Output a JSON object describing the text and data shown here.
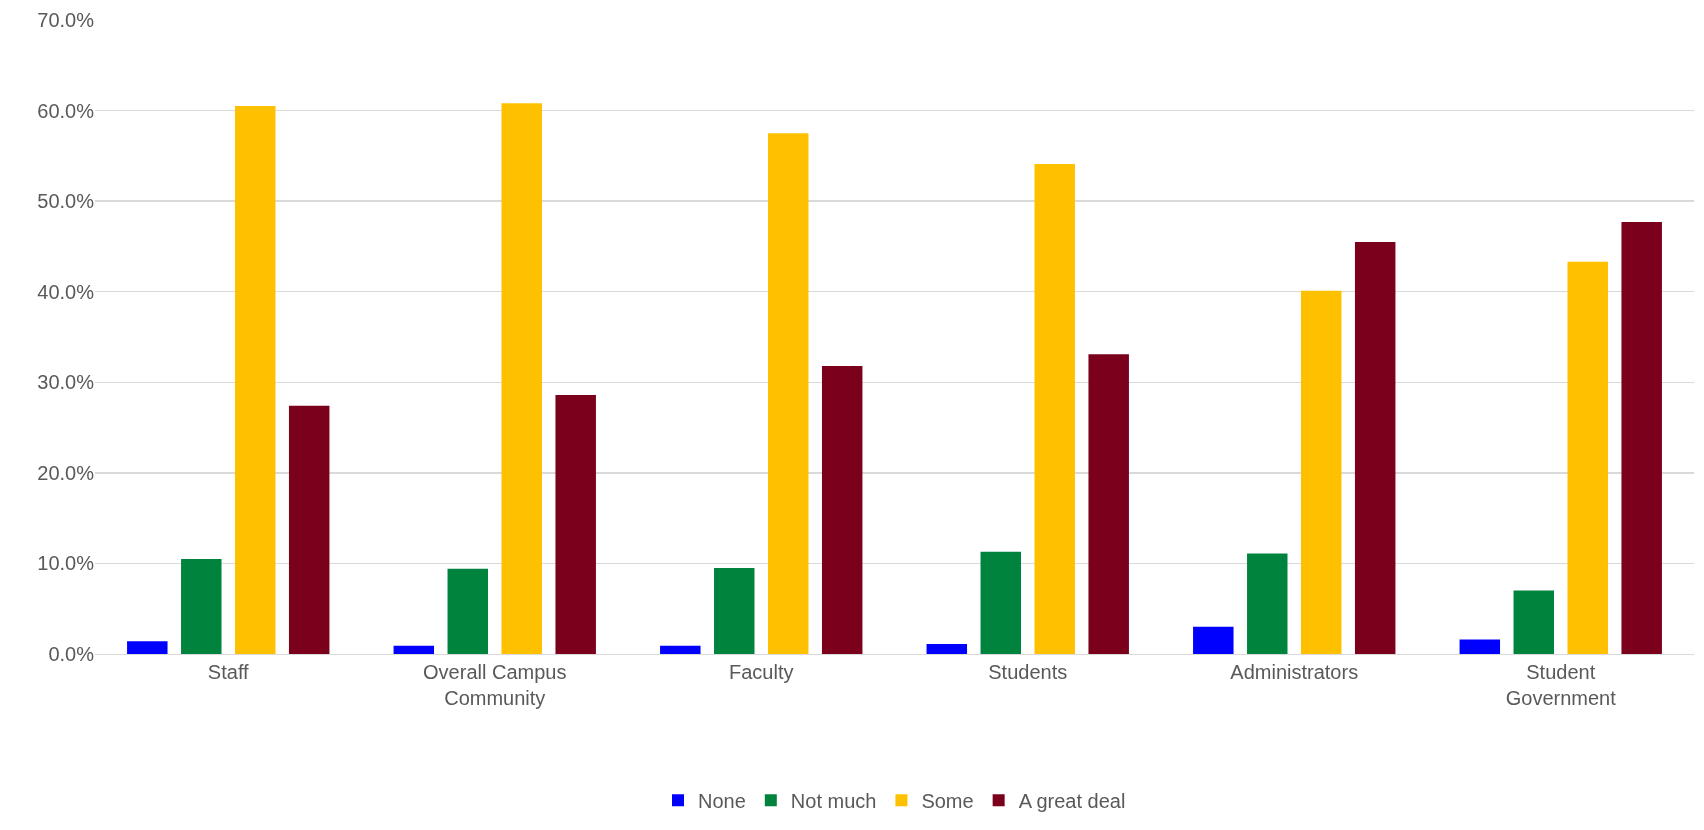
{
  "chart_data": {
    "type": "bar",
    "categories": [
      "Staff",
      "Overall Campus Community",
      "Faculty",
      "Students",
      "Administrators",
      "Student Government"
    ],
    "series": [
      {
        "name": "None",
        "color": "#0000ff",
        "values": [
          1.4,
          0.9,
          0.9,
          1.1,
          3.0,
          1.6
        ]
      },
      {
        "name": "Not much",
        "color": "#00843d",
        "values": [
          10.5,
          9.4,
          9.5,
          11.3,
          11.1,
          7.0
        ]
      },
      {
        "name": "Some",
        "color": "#ffc000",
        "values": [
          60.5,
          60.8,
          57.5,
          54.1,
          40.1,
          43.3
        ]
      },
      {
        "name": "A great deal",
        "color": "#7b001c",
        "values": [
          27.4,
          28.6,
          31.8,
          33.1,
          45.5,
          47.7
        ]
      }
    ],
    "ylim": [
      0,
      70
    ],
    "yticks": [
      {
        "value": 0,
        "label": "0.0%"
      },
      {
        "value": 10,
        "label": "10.0%"
      },
      {
        "value": 20,
        "label": "20.0%"
      },
      {
        "value": 30,
        "label": "30.0%"
      },
      {
        "value": 40,
        "label": "40.0%"
      },
      {
        "value": 50,
        "label": "50.0%"
      },
      {
        "value": 60,
        "label": "60.0%"
      },
      {
        "value": 70,
        "label": "70.0%"
      }
    ],
    "grid": "y",
    "legend": "bottom"
  }
}
